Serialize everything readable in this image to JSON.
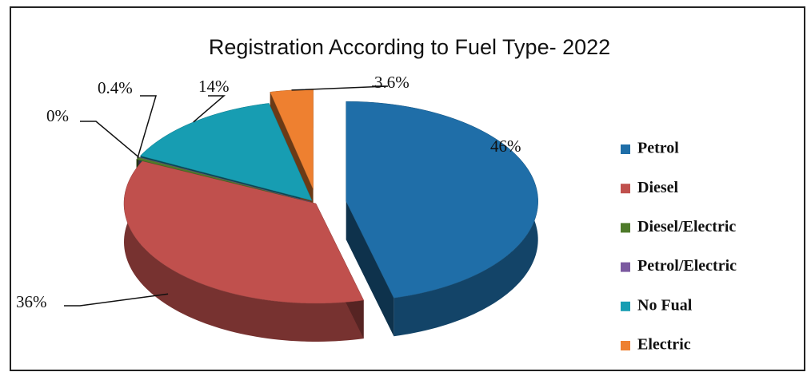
{
  "chart_data": {
    "type": "pie",
    "title": "Registration According to Fuel Type- 2022",
    "categories": [
      "Petrol",
      "Diesel",
      "Diesel/Electric",
      "Petrol/Electric",
      "No Fual",
      "Electric"
    ],
    "values": [
      46,
      36,
      0.4,
      0,
      14,
      3.6
    ],
    "value_labels": [
      "46%",
      "36%",
      "0.4%",
      "0%",
      "14%",
      "3.6%"
    ],
    "colors": [
      "#1f6ea8",
      "#c0504d",
      "#4e7a2a",
      "#7b5aa0",
      "#179db2",
      "#ee8030"
    ],
    "legend": "right"
  }
}
